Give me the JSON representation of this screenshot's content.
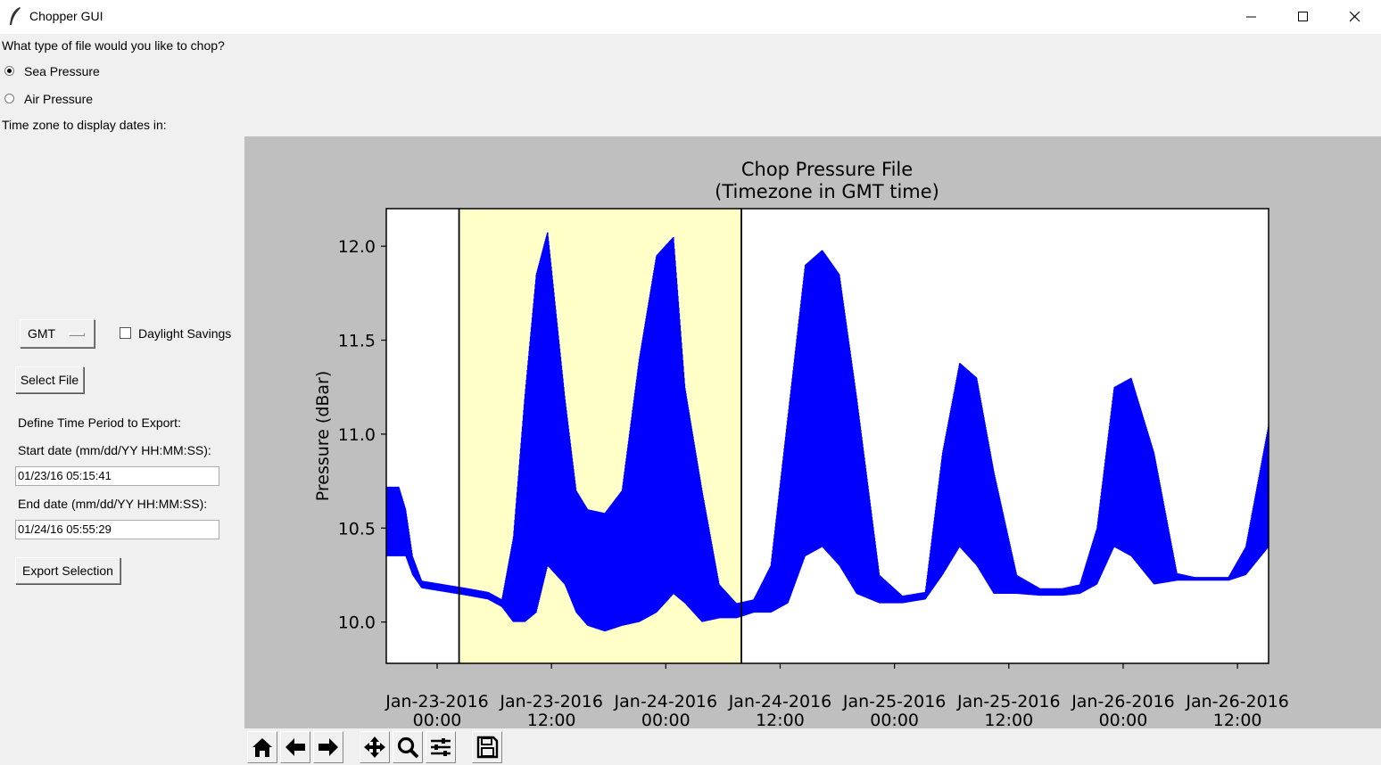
{
  "window": {
    "title": "Chopper GUI",
    "minimize_icon": "minimize-icon",
    "maximize_icon": "maximize-icon",
    "close_icon": "close-icon"
  },
  "form": {
    "question": "What type of file would you like to chop?",
    "radio_options": [
      {
        "label": "Sea Pressure",
        "selected": true
      },
      {
        "label": "Air Pressure",
        "selected": false
      }
    ],
    "timezone_prompt": "Time zone to display dates in:",
    "timezone_value": "GMT",
    "daylight_savings_label": "Daylight Savings",
    "daylight_savings_checked": false,
    "select_file_label": "Select File",
    "define_period_label": "Define Time Period to Export:",
    "start_label": "Start date (mm/dd/YY HH:MM:SS):",
    "start_value": "01/23/16 05:15:41",
    "end_label": "End date (mm/dd/YY HH:MM:SS):",
    "end_value": "01/24/16 05:55:29",
    "export_label": "Export Selection"
  },
  "toolbar": {
    "icons": [
      "home-icon",
      "back-arrow-icon",
      "forward-arrow-icon",
      "pan-icon",
      "zoom-icon",
      "configure-subplots-icon",
      "save-icon"
    ]
  },
  "colors": {
    "series": "#0000ff",
    "selection_fill": "#ffffc8",
    "figure_bg": "#bfbfbf",
    "window_bg": "#f0f0f0"
  },
  "chart_data": {
    "type": "line",
    "title": "Chop Pressure File\n(Timezone in GMT time)",
    "title_lines": [
      "Chop Pressure File",
      "(Timezone in GMT time)"
    ],
    "ylabel": "Pressure (dBar)",
    "xlabel": "",
    "x_unit": "hours since Jan-23-2016 00:00 (GMT)",
    "xlim": [
      -1.1,
      76.0
    ],
    "ylim": [
      9.78,
      12.2
    ],
    "yticks": [
      10.0,
      10.5,
      11.0,
      11.5,
      12.0
    ],
    "ytick_labels": [
      "10.0",
      "10.5",
      "11.0",
      "11.5",
      "12.0"
    ],
    "xticks": [
      0,
      12,
      24,
      36,
      48,
      60,
      72,
      84
    ],
    "xtick_labels": [
      [
        "Jan-23-2016",
        "00:00"
      ],
      [
        "Jan-23-2016",
        "12:00"
      ],
      [
        "Jan-24-2016",
        "00:00"
      ],
      [
        "Jan-24-2016",
        "12:00"
      ],
      [
        "Jan-25-2016",
        "00:00"
      ],
      [
        "Jan-25-2016",
        "12:00"
      ],
      [
        "Jan-26-2016",
        "00:00"
      ],
      [
        "Jan-26-2016",
        "12:00"
      ]
    ],
    "selection_span": [
      5.26,
      29.93
    ],
    "grid": false,
    "legend": "none",
    "series": [
      {
        "x": [
          -1.2,
          0.0,
          0.6,
          1.2,
          2.0,
          4.0,
          6.0,
          7.8,
          9.0,
          10.0,
          11.0,
          12.0,
          13.0,
          14.5,
          15.5,
          16.5,
          18.0,
          19.5,
          21.0,
          22.5,
          24.0,
          25.0,
          26.5,
          28.0,
          29.5,
          31.0,
          32.5,
          34.0,
          35.5,
          37.0,
          38.5,
          40.0,
          42.0,
          44.0,
          46.0,
          47.5,
          49.0,
          50.5,
          52.0,
          54.0,
          56.0,
          58.0,
          59.5,
          61.0,
          62.5,
          64.0,
          66.0,
          68.0,
          69.5,
          71.0,
          72.5,
          74.0,
          76.0,
          78.0,
          79.5,
          82.0,
          83.5
        ],
        "upper": [
          10.72,
          10.72,
          10.6,
          10.35,
          10.22,
          10.2,
          10.18,
          10.16,
          10.12,
          10.45,
          11.2,
          11.85,
          12.08,
          11.2,
          10.7,
          10.6,
          10.58,
          10.7,
          11.4,
          11.95,
          12.05,
          11.25,
          10.7,
          10.2,
          10.1,
          10.12,
          10.3,
          11.1,
          11.9,
          11.98,
          11.85,
          11.2,
          10.25,
          10.14,
          10.16,
          10.9,
          11.38,
          11.3,
          10.8,
          10.25,
          10.18,
          10.18,
          10.2,
          10.5,
          11.25,
          11.3,
          10.9,
          10.26,
          10.24,
          10.24,
          10.24,
          10.4,
          11.05,
          10.6,
          10.24,
          10.2,
          10.22
        ],
        "lower": [
          10.35,
          10.35,
          10.35,
          10.25,
          10.18,
          10.16,
          10.14,
          10.12,
          10.08,
          10.0,
          10.0,
          10.05,
          10.3,
          10.2,
          10.05,
          9.98,
          9.95,
          9.98,
          10.0,
          10.05,
          10.15,
          10.1,
          10.0,
          10.02,
          10.02,
          10.05,
          10.05,
          10.1,
          10.35,
          10.4,
          10.3,
          10.15,
          10.1,
          10.1,
          10.12,
          10.25,
          10.4,
          10.3,
          10.15,
          10.15,
          10.14,
          10.14,
          10.15,
          10.2,
          10.4,
          10.35,
          10.2,
          10.22,
          10.22,
          10.22,
          10.22,
          10.25,
          10.4,
          10.25,
          10.22,
          10.18,
          10.18
        ]
      }
    ]
  }
}
